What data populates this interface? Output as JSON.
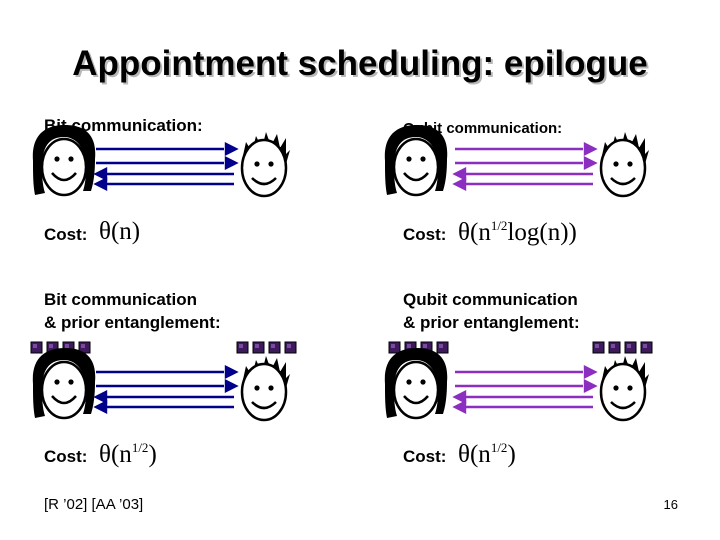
{
  "title": "Appointment scheduling: epilogue",
  "panels": {
    "bit": {
      "label": "Bit communication:",
      "cost_label": "Cost:",
      "cost_expr": "θ(n)"
    },
    "qubit": {
      "label": "Qubit communication:",
      "cost_label": "Cost:",
      "cost_expr_theta": "θ(",
      "cost_expr_n": "n",
      "cost_expr_exp": "1/2",
      "cost_expr_rest": "log(n))"
    },
    "bit_ent": {
      "label_line1": "Bit communication",
      "label_line2": "& prior entanglement:",
      "cost_label": "Cost:",
      "cost_expr_base": "θ(n",
      "cost_expr_exp": "1/2",
      "cost_expr_close": ")"
    },
    "qubit_ent": {
      "label_line1": "Qubit communication",
      "label_line2": "& prior entanglement:",
      "cost_label": "Cost:",
      "cost_expr_base": "θ(n",
      "cost_expr_exp": "1/2",
      "cost_expr_close": ")"
    }
  },
  "footer": {
    "reference": "[R ’02] [AA ’03]",
    "page_number": "16"
  },
  "colors": {
    "bit_arrows": "#00008b",
    "qubit_arrows": "#8b2fc0",
    "entangled_block": "#3c1a5c"
  }
}
